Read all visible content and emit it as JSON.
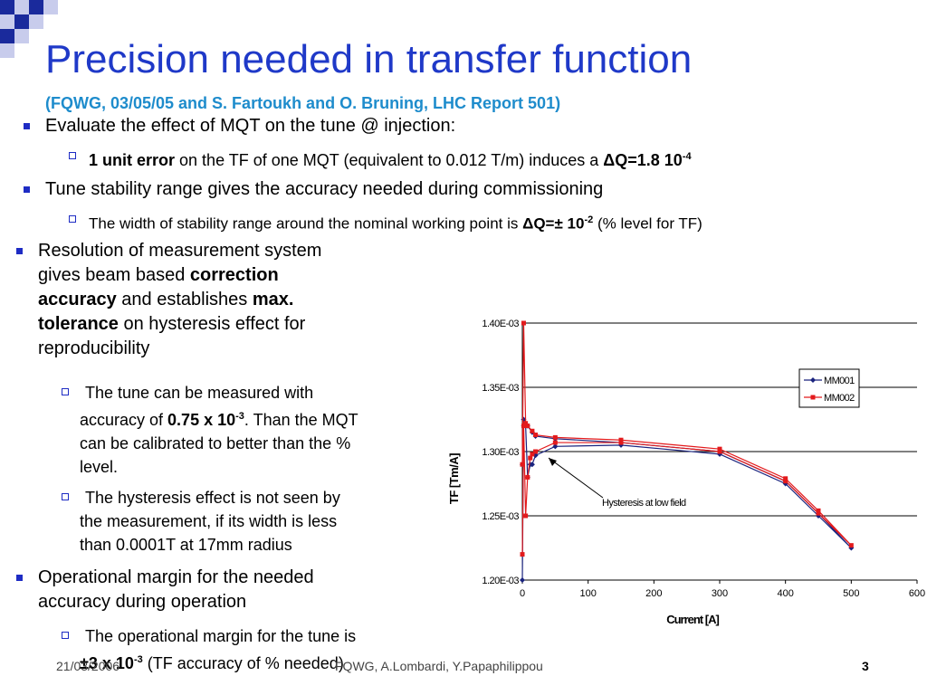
{
  "slide": {
    "title": "Precision needed in transfer function",
    "subtitle": "(FQWG, 03/05/05 and S. Fartoukh and O. Bruning, LHC Report 501)",
    "bullet1": "Evaluate the effect of MQT on the tune @ injection:",
    "bullet1_sub_bold": "1 unit error",
    "bullet1_sub_text": " on the TF of one MQT (equivalent to 0.012  T/m) induces a ",
    "bullet1_sub_dq": "ΔQ=1.8 10",
    "bullet1_sub_exp": "-4",
    "bullet2": "Tune stability range gives the accuracy needed during commissioning",
    "bullet2_sub_text": "The width of stability range around the nominal working point is ",
    "bullet2_sub_dq": "ΔQ=± 10",
    "bullet2_sub_exp": "-2",
    "bullet2_sub_tail": " (% level for TF)",
    "bullet3_a": "Resolution of measurement system",
    "bullet3_b": "gives beam based ",
    "bullet3_c_bold": "correction",
    "bullet3_d_bold": "accuracy",
    "bullet3_e": " and establishes ",
    "bullet3_f_bold": "max.",
    "bullet3_g_bold": "tolerance",
    "bullet3_h": " on hysteresis effect for",
    "bullet3_i": "reproducibility",
    "sub3a_1": " The tune can be measured with",
    "sub3a_2": "accuracy of ",
    "sub3a_bold": "0.75 x 10",
    "sub3a_exp": "-3",
    "sub3a_3": ". Than the MQT",
    "sub3a_4": "can be calibrated to better than the %",
    "sub3a_5": "level.",
    "sub3b_1": " The hysteresis effect is not seen by",
    "sub3b_2": "the measurement, if its width is less",
    "sub3b_3": "than 0.0001T at 17mm radius",
    "bullet4_1": "Operational margin for the needed",
    "bullet4_2": "accuracy during operation",
    "sub4_1": " The operational margin for the tune is",
    "sub4_bold": "±3  x 10",
    "sub4_exp": "-3",
    "sub4_tail": " (TF accuracy of %  needed)"
  },
  "footer": {
    "date": "21/03/2006",
    "authors": "FQWG, A.Lombardi, Y.Papaphilippou",
    "page": "3"
  },
  "colors": {
    "title": "#1f39c8",
    "subtitle": "#1e8ccc",
    "bullet": "#1e2cc4",
    "series_mm001": "#1a237e",
    "series_mm002": "#e31a1c"
  },
  "chart_data": {
    "type": "line",
    "xlabel": "Current [A]",
    "ylabel": "TF [Tm/A]",
    "xlim": [
      0,
      600
    ],
    "ylim": [
      0.0012,
      0.0014
    ],
    "xticks": [
      "0",
      "100",
      "200",
      "300",
      "400",
      "500",
      "600"
    ],
    "yticks": [
      "1.20E-03",
      "1.25E-03",
      "1.30E-03",
      "1.35E-03",
      "1.40E-03"
    ],
    "grid": true,
    "legend": "top-right",
    "annotation": "Hysteresis at low field",
    "series": [
      {
        "name": "MM001",
        "points": [
          [
            0,
            0.0012
          ],
          [
            2,
            0.001325
          ],
          [
            5,
            0.00132
          ],
          [
            8,
            0.00128
          ],
          [
            12,
            0.00129
          ],
          [
            15,
            0.00129
          ],
          [
            20,
            0.001297
          ],
          [
            50,
            0.001304
          ],
          [
            150,
            0.001305
          ],
          [
            300,
            0.001298
          ],
          [
            400,
            0.001275
          ],
          [
            450,
            0.00125
          ],
          [
            500,
            0.001225
          ],
          [
            450,
            0.001252
          ],
          [
            400,
            0.001277
          ],
          [
            300,
            0.0013
          ],
          [
            150,
            0.001307
          ],
          [
            50,
            0.00131
          ],
          [
            20,
            0.001312
          ],
          [
            15,
            0.001315
          ],
          [
            8,
            0.00132
          ],
          [
            5,
            0.00132
          ],
          [
            2,
            0.00132
          ],
          [
            0,
            0.00129
          ]
        ]
      },
      {
        "name": "MM002",
        "points": [
          [
            0,
            0.00122
          ],
          [
            2,
            0.00132
          ],
          [
            5,
            0.00125
          ],
          [
            8,
            0.00128
          ],
          [
            12,
            0.001295
          ],
          [
            15,
            0.001298
          ],
          [
            20,
            0.0013
          ],
          [
            50,
            0.001307
          ],
          [
            150,
            0.001307
          ],
          [
            300,
            0.0013
          ],
          [
            400,
            0.001277
          ],
          [
            450,
            0.001252
          ],
          [
            500,
            0.001227
          ],
          [
            450,
            0.001254
          ],
          [
            400,
            0.001279
          ],
          [
            300,
            0.001302
          ],
          [
            150,
            0.001309
          ],
          [
            50,
            0.001311
          ],
          [
            20,
            0.001313
          ],
          [
            15,
            0.001316
          ],
          [
            8,
            0.00132
          ],
          [
            5,
            0.001322
          ],
          [
            2,
            0.0014
          ],
          [
            0,
            0.00129
          ]
        ]
      }
    ]
  }
}
